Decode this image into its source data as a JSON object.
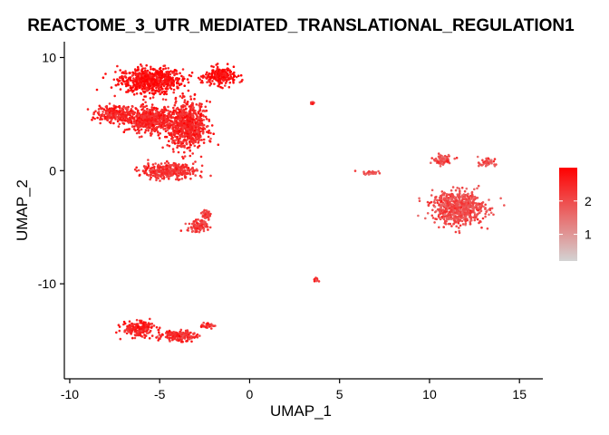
{
  "chart_data": {
    "type": "scatter",
    "title": "REACTOME_3_UTR_MEDIATED_TRANSLATIONAL_REGULATION1",
    "xlabel": "UMAP_1",
    "ylabel": "UMAP_2",
    "xlim": [
      -10.3,
      16.3
    ],
    "ylim": [
      -18.4,
      11.4
    ],
    "x_ticks": [
      -10,
      -5,
      0,
      5,
      10,
      15
    ],
    "y_ticks": [
      -10,
      0,
      10
    ],
    "x_tick_labels": [
      "-10",
      "-5",
      "0",
      "5",
      "10",
      "15"
    ],
    "y_tick_labels": [
      "-10",
      "0",
      "10"
    ],
    "grid": false,
    "legend": {
      "placement": "right",
      "type": "colorbar",
      "ticks": [
        1,
        2
      ],
      "tick_labels": [
        "1",
        "2"
      ],
      "range": [
        0.2,
        3.0
      ],
      "low_color": "#d3d3d3",
      "high_color": "#ff0000"
    },
    "clusters": [
      {
        "center": [
          -5.5,
          8.0
        ],
        "spread": [
          1.6,
          1.0
        ],
        "value": 2.8
      },
      {
        "center": [
          -1.6,
          8.3
        ],
        "spread": [
          0.8,
          0.7
        ],
        "value": 2.8
      },
      {
        "center": [
          -7.5,
          5.0
        ],
        "spread": [
          0.9,
          0.6
        ],
        "value": 2.5
      },
      {
        "center": [
          -5.6,
          4.5
        ],
        "spread": [
          1.2,
          1.0
        ],
        "value": 2.5
      },
      {
        "center": [
          -3.5,
          4.0
        ],
        "spread": [
          1.0,
          1.8
        ],
        "value": 2.5
      },
      {
        "center": [
          -4.5,
          0.0
        ],
        "spread": [
          1.4,
          0.6
        ],
        "value": 2.3
      },
      {
        "center": [
          -2.9,
          -4.9
        ],
        "spread": [
          0.5,
          0.5
        ],
        "value": 2.2
      },
      {
        "center": [
          -2.4,
          -3.9
        ],
        "spread": [
          0.2,
          0.5
        ],
        "value": 2.2
      },
      {
        "center": [
          3.5,
          6.0
        ],
        "spread": [
          0.08,
          0.08
        ],
        "value": 2.3
      },
      {
        "center": [
          3.7,
          -9.6
        ],
        "spread": [
          0.1,
          0.15
        ],
        "value": 2.3
      },
      {
        "center": [
          6.8,
          -0.2
        ],
        "spread": [
          0.5,
          0.15
        ],
        "value": 2.0
      },
      {
        "center": [
          11.6,
          -3.3
        ],
        "spread": [
          1.3,
          1.3
        ],
        "value": 2.0
      },
      {
        "center": [
          10.7,
          1.0
        ],
        "spread": [
          0.5,
          0.4
        ],
        "value": 2.0
      },
      {
        "center": [
          13.2,
          0.7
        ],
        "spread": [
          0.4,
          0.3
        ],
        "value": 2.0
      },
      {
        "center": [
          -6.2,
          -14.0
        ],
        "spread": [
          0.8,
          0.6
        ],
        "value": 2.6
      },
      {
        "center": [
          -4.0,
          -14.6
        ],
        "spread": [
          0.9,
          0.4
        ],
        "value": 2.4
      },
      {
        "center": [
          -2.3,
          -13.7
        ],
        "spread": [
          0.4,
          0.2
        ],
        "value": 2.4
      }
    ]
  }
}
